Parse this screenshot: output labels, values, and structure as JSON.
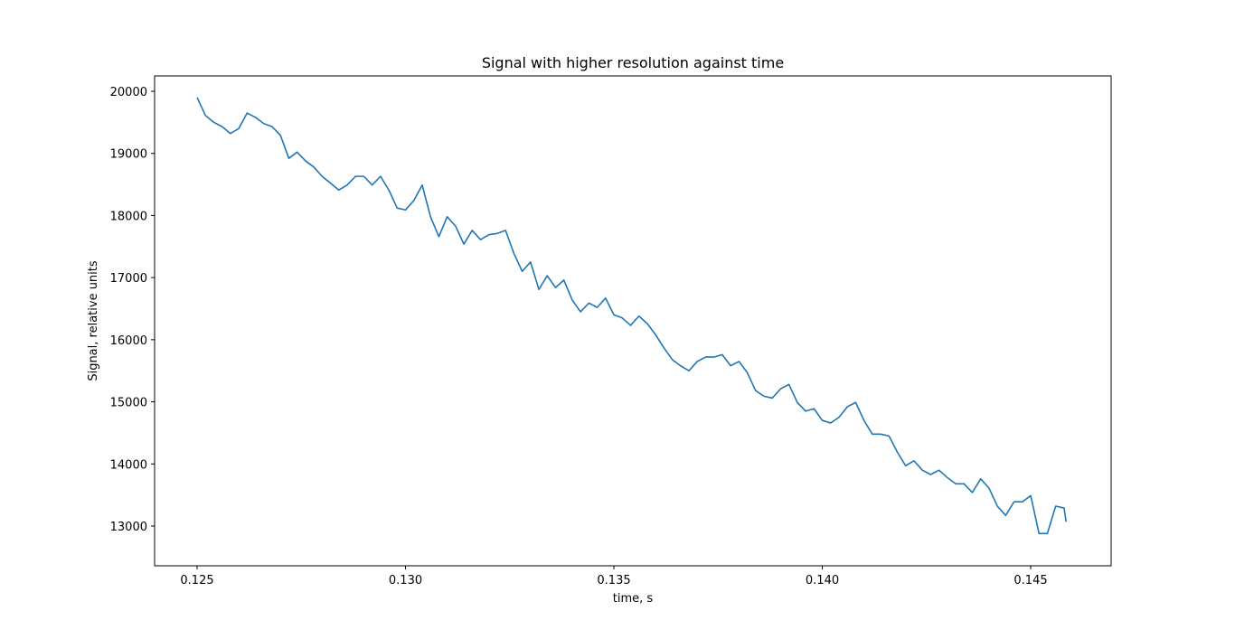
{
  "chart_data": {
    "type": "line",
    "title": "Signal with higher resolution against time",
    "x_label": "time, s",
    "y_label": "Signal, relative units",
    "color": "#1f77b4",
    "grid": false,
    "x": [
      0.125,
      0.1252,
      0.1254,
      0.1256,
      0.1258,
      0.126,
      0.1262,
      0.1264,
      0.1266,
      0.1268,
      0.127,
      0.1272,
      0.1274,
      0.1276,
      0.1278,
      0.128,
      0.1282,
      0.1284,
      0.1286,
      0.1288,
      0.129,
      0.1292,
      0.1294,
      0.1296,
      0.1298,
      0.13,
      0.1302,
      0.1304,
      0.1306,
      0.1308,
      0.131,
      0.1312,
      0.1314,
      0.1316,
      0.1318,
      0.132,
      0.1322,
      0.1324,
      0.1326,
      0.1328,
      0.133,
      0.1332,
      0.1334,
      0.1336,
      0.1338,
      0.134,
      0.1342,
      0.1344,
      0.1346,
      0.1348,
      0.135,
      0.1352,
      0.1354,
      0.1356,
      0.1358,
      0.136,
      0.1362,
      0.1364,
      0.1366,
      0.1368,
      0.137,
      0.1372,
      0.1374,
      0.1376,
      0.1378,
      0.138,
      0.1382,
      0.1384,
      0.1386,
      0.1388,
      0.139,
      0.1392,
      0.1394,
      0.1396,
      0.1398,
      0.14,
      0.1402,
      0.1404,
      0.1406,
      0.1408,
      0.141,
      0.1412,
      0.1414,
      0.1416,
      0.1418,
      0.142,
      0.1422,
      0.1424,
      0.1426,
      0.1428,
      0.143,
      0.1432,
      0.1434,
      0.1436,
      0.1438,
      0.144,
      0.1442,
      0.1444,
      0.1446,
      0.1448,
      0.145,
      0.1452,
      0.1454,
      0.1456,
      0.1458,
      0.14585
    ],
    "values": [
      19900,
      19610,
      19500,
      19430,
      19320,
      19400,
      19650,
      19580,
      19480,
      19430,
      19290,
      18920,
      19020,
      18880,
      18780,
      18630,
      18520,
      18410,
      18490,
      18630,
      18630,
      18490,
      18630,
      18410,
      18120,
      18090,
      18240,
      18490,
      17980,
      17660,
      17980,
      17830,
      17540,
      17760,
      17610,
      17690,
      17710,
      17760,
      17390,
      17100,
      17250,
      16810,
      17030,
      16840,
      16960,
      16640,
      16450,
      16590,
      16520,
      16670,
      16400,
      16350,
      16230,
      16380,
      16260,
      16080,
      15870,
      15680,
      15580,
      15500,
      15650,
      15720,
      15720,
      15760,
      15580,
      15650,
      15470,
      15180,
      15090,
      15060,
      15210,
      15280,
      14990,
      14850,
      14890,
      14700,
      14660,
      14750,
      14920,
      14990,
      14700,
      14480,
      14480,
      14450,
      14190,
      13970,
      14050,
      13900,
      13830,
      13900,
      13780,
      13680,
      13680,
      13540,
      13760,
      13610,
      13320,
      13170,
      13390,
      13390,
      13490,
      12880,
      12880,
      13320,
      13290,
      13070
    ],
    "xlim": [
      0.12398,
      0.14693
    ],
    "ylim": [
      12360,
      20247
    ],
    "xticks": [
      0.125,
      {
        "value": 0.13,
        "label": "0.130"
      },
      0.135,
      {
        "value": 0.14,
        "label": "0.140"
      },
      0.145
    ],
    "yticks": [
      13000,
      14000,
      15000,
      16000,
      17000,
      18000,
      19000,
      20000
    ]
  }
}
